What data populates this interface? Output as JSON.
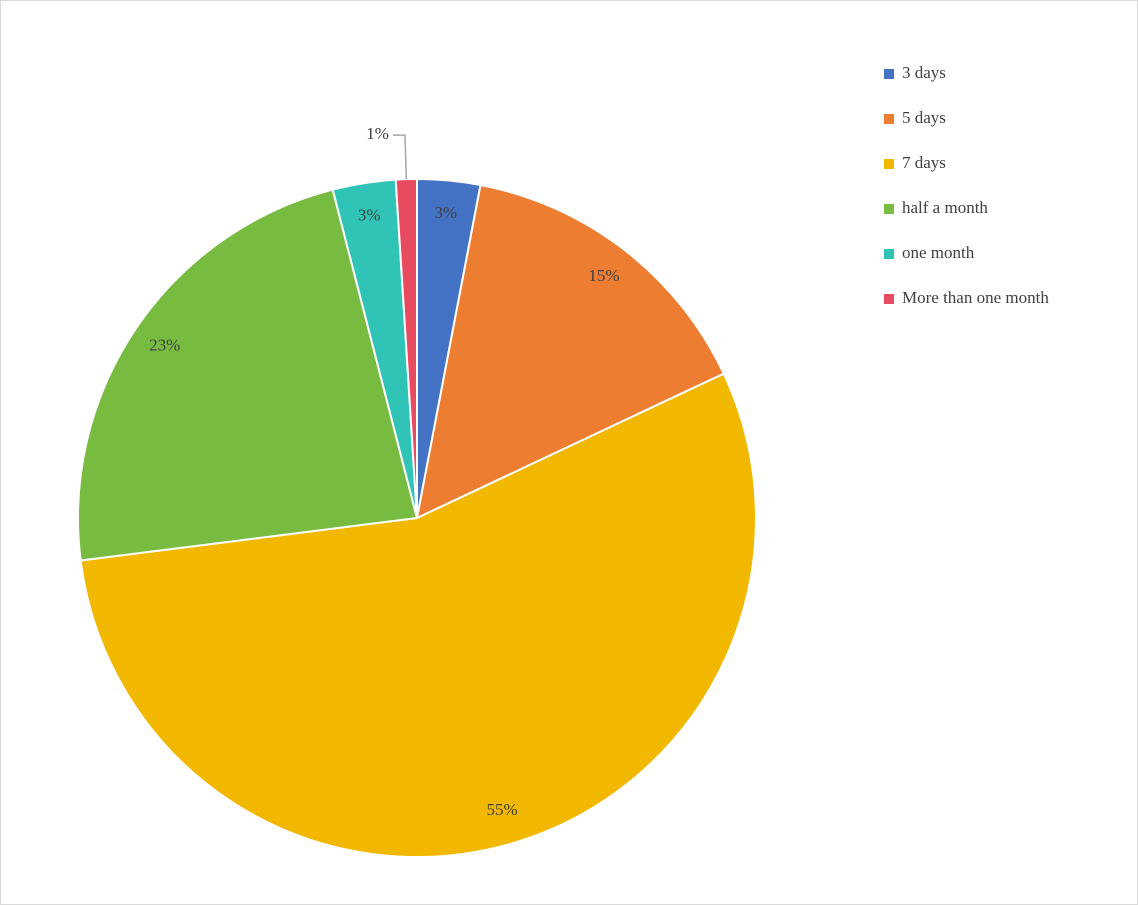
{
  "chart_data": {
    "type": "pie",
    "categories": [
      "3 days",
      "5 days",
      "7 days",
      "half a month",
      "one month",
      "More than one month"
    ],
    "values": [
      3,
      15,
      55,
      23,
      3,
      1
    ],
    "value_labels": [
      "3%",
      "15%",
      "55%",
      "23%",
      "3%",
      "1%"
    ],
    "colors": [
      "#4472c4",
      "#ed7d31",
      "#f2b800",
      "#77bb41",
      "#2fc4b6",
      "#e84a5f"
    ],
    "legend": "right"
  }
}
